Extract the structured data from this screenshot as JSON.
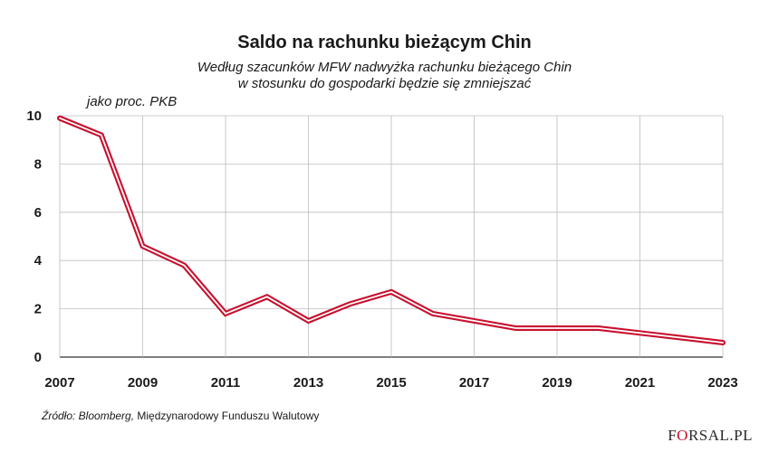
{
  "chart_data": {
    "type": "line",
    "title": "Saldo na rachunku bieżącym Chin",
    "subtitle_lines": [
      "Według szacunków MFW nadwyżka rachunku bieżącego Chin",
      "w stosunku do gospodarki będzie się zmniejszać"
    ],
    "ylabel": "jako proc. PKB",
    "xlabel": "",
    "x": [
      2007,
      2008,
      2009,
      2010,
      2011,
      2012,
      2013,
      2014,
      2015,
      2016,
      2017,
      2018,
      2019,
      2020,
      2021,
      2022,
      2023
    ],
    "series": [
      {
        "name": "",
        "values": [
          9.9,
          9.2,
          4.6,
          3.8,
          1.8,
          2.5,
          1.5,
          2.2,
          2.7,
          1.8,
          1.5,
          1.2,
          1.2,
          1.2,
          1.0,
          0.8,
          0.6
        ],
        "color": "#c8102e"
      }
    ],
    "xticks": [
      "2007",
      "2009",
      "2011",
      "2013",
      "2015",
      "2017",
      "2019",
      "2021",
      "2023"
    ],
    "yticks": [
      "0",
      "2",
      "4",
      "6",
      "8",
      "10"
    ],
    "xlim": [
      2007,
      2023
    ],
    "ylim": [
      0,
      10
    ],
    "grid": true
  },
  "footer": {
    "source_italic": "Źródło: Bloomberg,",
    "source_rest": " Międzynarodowy Funduszu Walutowy",
    "logo_part1": "F",
    "logo_o": "O",
    "logo_part2": "RSAL.PL"
  }
}
